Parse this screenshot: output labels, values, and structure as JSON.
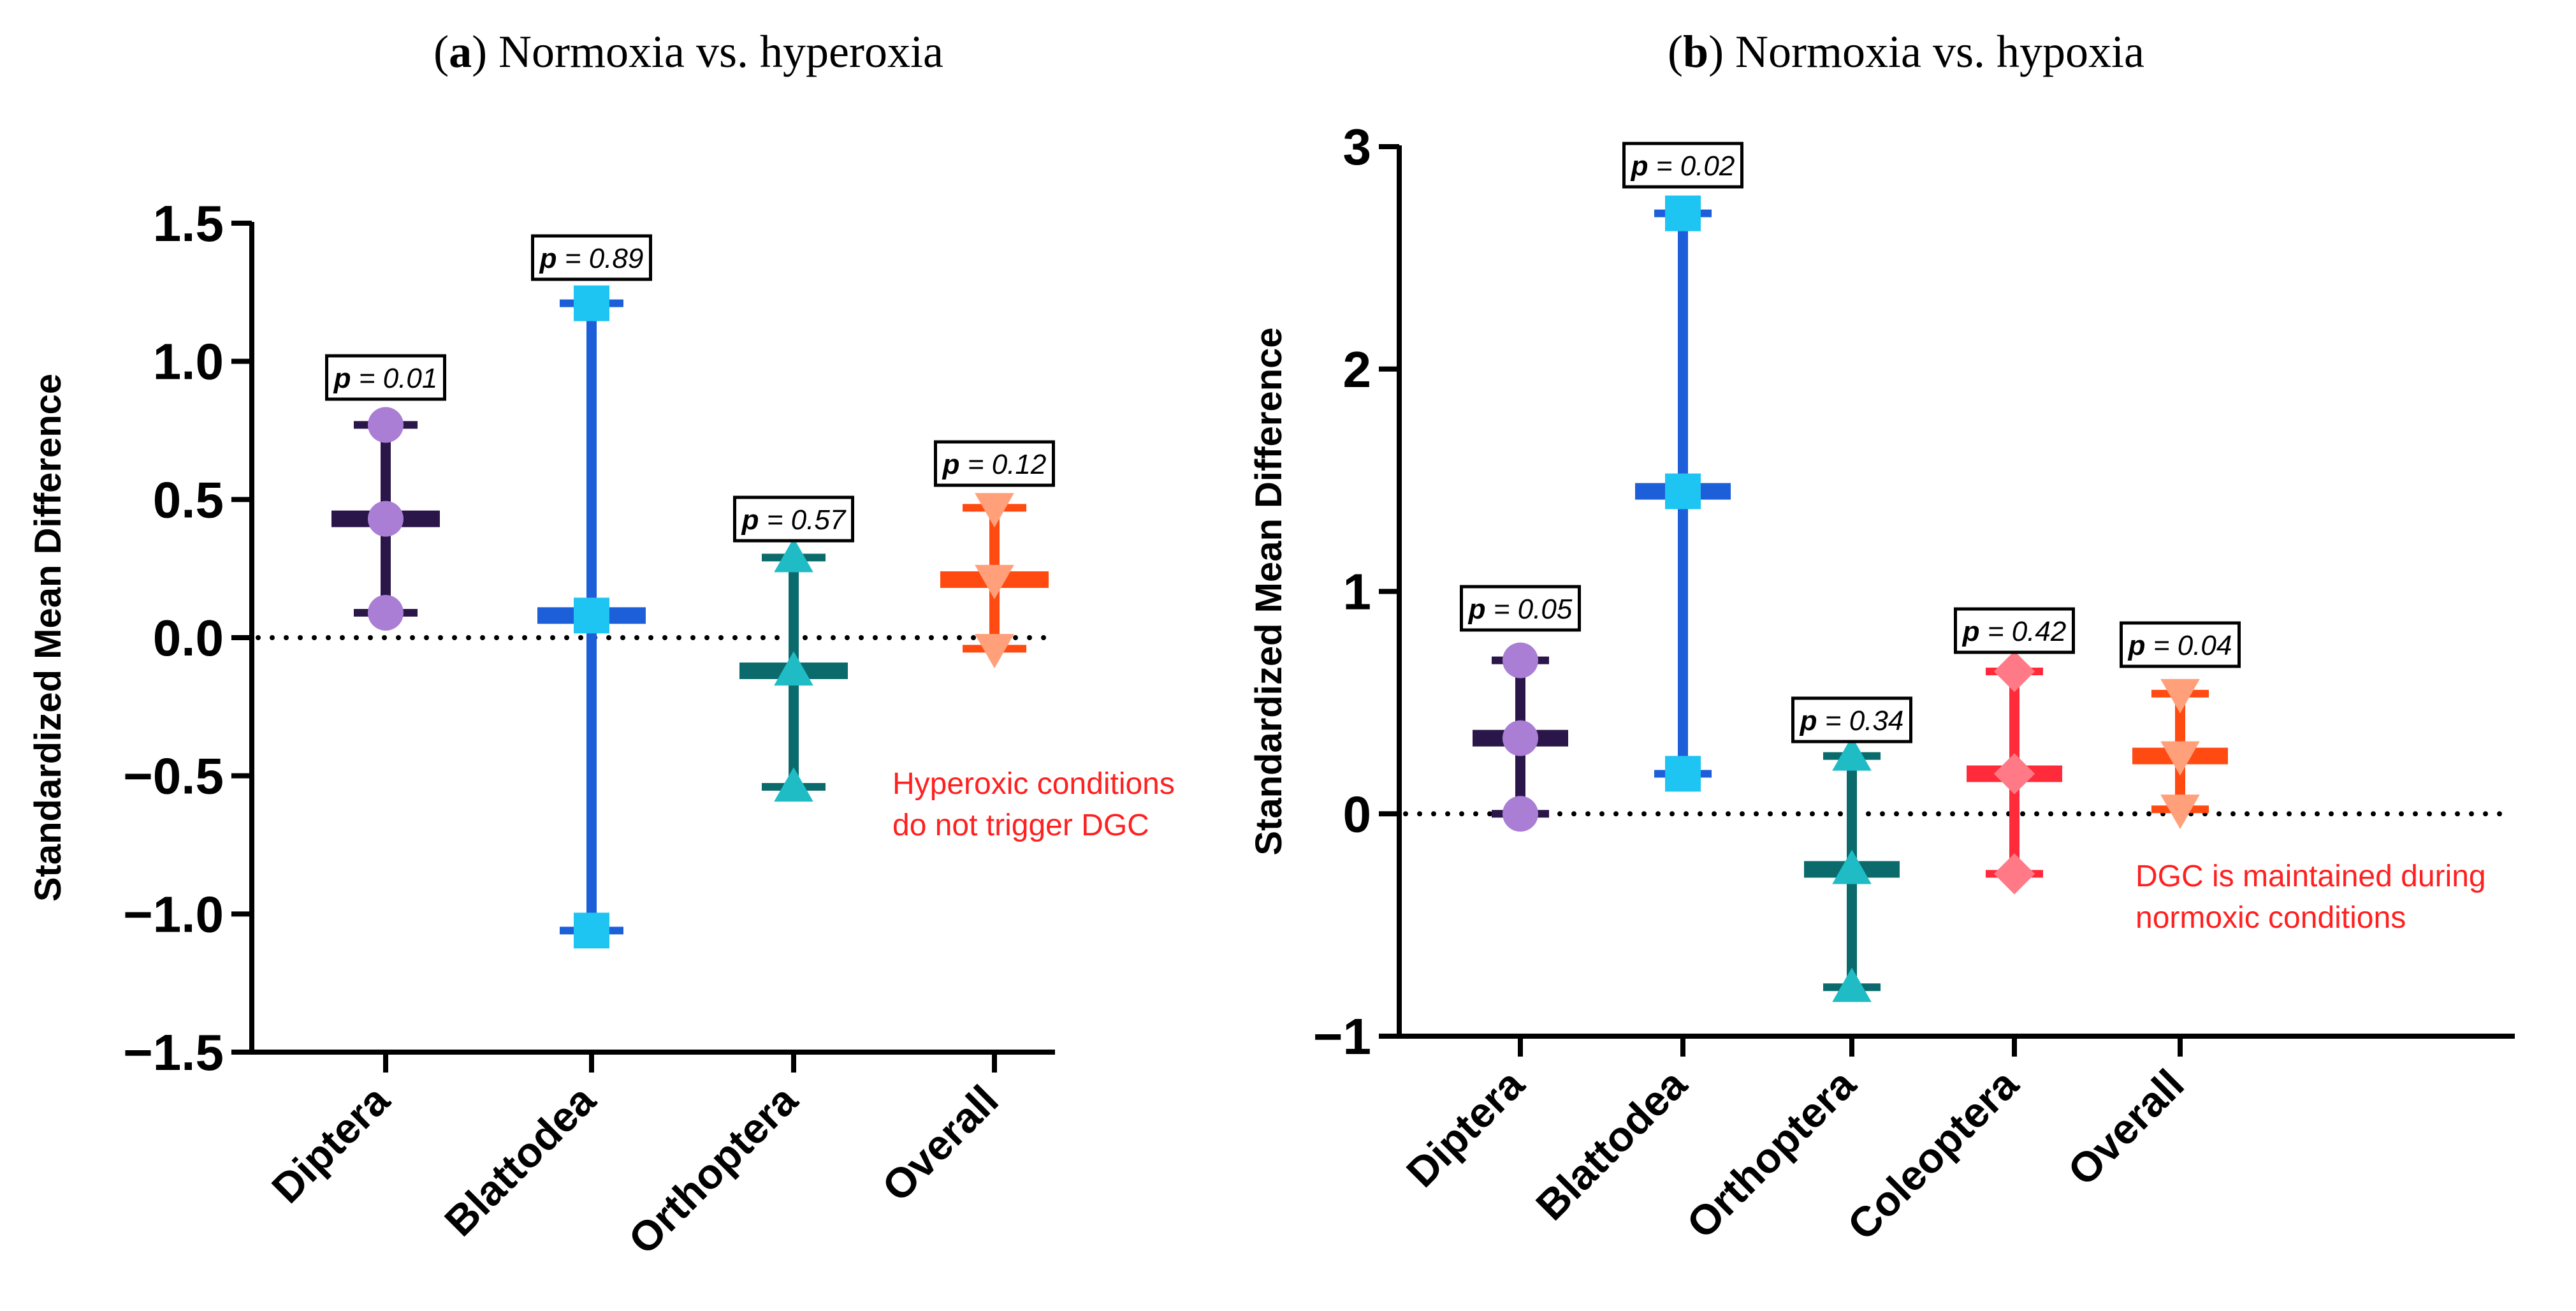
{
  "chart_data": [
    {
      "type": "scatter",
      "panel_label": "a",
      "title": "Normoxia vs. hyperoxia",
      "ylabel": "Standardized Mean Difference",
      "xlabel": "",
      "ylim": [
        -1.5,
        1.5
      ],
      "yticks": [
        -1.5,
        -1.0,
        -0.5,
        0.0,
        0.5,
        1.0,
        1.5
      ],
      "ytick_labels": [
        "−1.5",
        "−1.0",
        "−0.5",
        "0.0",
        "0.5",
        "1.0",
        "1.5"
      ],
      "reference_line": 0,
      "categories": [
        "Diptera",
        "Blattodea",
        "Orthoptera",
        "Overall"
      ],
      "series": [
        {
          "name": "Diptera",
          "mean": 0.43,
          "lower": 0.09,
          "upper": 0.77,
          "p_label": "= 0.01",
          "marker": "circle",
          "color": "#2a1648",
          "marker_color": "#a97ed4"
        },
        {
          "name": "Blattodea",
          "mean": 0.08,
          "lower": -1.06,
          "upper": 1.21,
          "p_label": "= 0.89",
          "marker": "square",
          "color": "#1d5fd8",
          "marker_color": "#1ec4f2"
        },
        {
          "name": "Orthoptera",
          "mean": -0.12,
          "lower": -0.54,
          "upper": 0.29,
          "p_label": "= 0.57",
          "marker": "triangle-up",
          "color": "#0b6a6c",
          "marker_color": "#1fbcc6"
        },
        {
          "name": "Overall",
          "mean": 0.21,
          "lower": -0.04,
          "upper": 0.47,
          "p_label": "= 0.12",
          "marker": "triangle-down",
          "color": "#ff4a12",
          "marker_color": "#ffa07a"
        }
      ],
      "annotation": [
        "Hyperoxic conditions",
        "do not trigger DGC"
      ],
      "annotation_color": "#ff2020"
    },
    {
      "type": "scatter",
      "panel_label": "b",
      "title": "Normoxia vs. hypoxia",
      "ylabel": "Standardized Mean Difference",
      "xlabel": "",
      "ylim": [
        -1,
        3
      ],
      "yticks": [
        -1,
        0,
        1,
        2,
        3
      ],
      "ytick_labels": [
        "−1",
        "0",
        "1",
        "2",
        "3"
      ],
      "reference_line": 0,
      "categories": [
        "Diptera",
        "Blattodea",
        "Orthoptera",
        "Coleoptera",
        "Overall"
      ],
      "series": [
        {
          "name": "Diptera",
          "mean": 0.34,
          "lower": 0.0,
          "upper": 0.69,
          "p_label": "= 0.05",
          "marker": "circle",
          "color": "#2a1648",
          "marker_color": "#a97ed4"
        },
        {
          "name": "Blattodea",
          "mean": 1.45,
          "lower": 0.18,
          "upper": 2.7,
          "p_label": "= 0.02",
          "marker": "square",
          "color": "#1d5fd8",
          "marker_color": "#1ec4f2"
        },
        {
          "name": "Orthoptera",
          "mean": -0.25,
          "lower": -0.78,
          "upper": 0.26,
          "p_label": "= 0.34",
          "marker": "triangle-up",
          "color": "#0b6a6c",
          "marker_color": "#1fbcc6"
        },
        {
          "name": "Coleoptera",
          "mean": 0.18,
          "lower": -0.27,
          "upper": 0.64,
          "p_label": "= 0.42",
          "marker": "diamond",
          "color": "#ff2a3a",
          "marker_color": "#ff7a86"
        },
        {
          "name": "Overall",
          "mean": 0.26,
          "lower": 0.02,
          "upper": 0.54,
          "p_label": "= 0.04",
          "marker": "triangle-down",
          "color": "#ff4a12",
          "marker_color": "#ffa07a"
        }
      ],
      "annotation": [
        "DGC is maintained during",
        "normoxic conditions"
      ],
      "annotation_color": "#ff2020"
    }
  ]
}
